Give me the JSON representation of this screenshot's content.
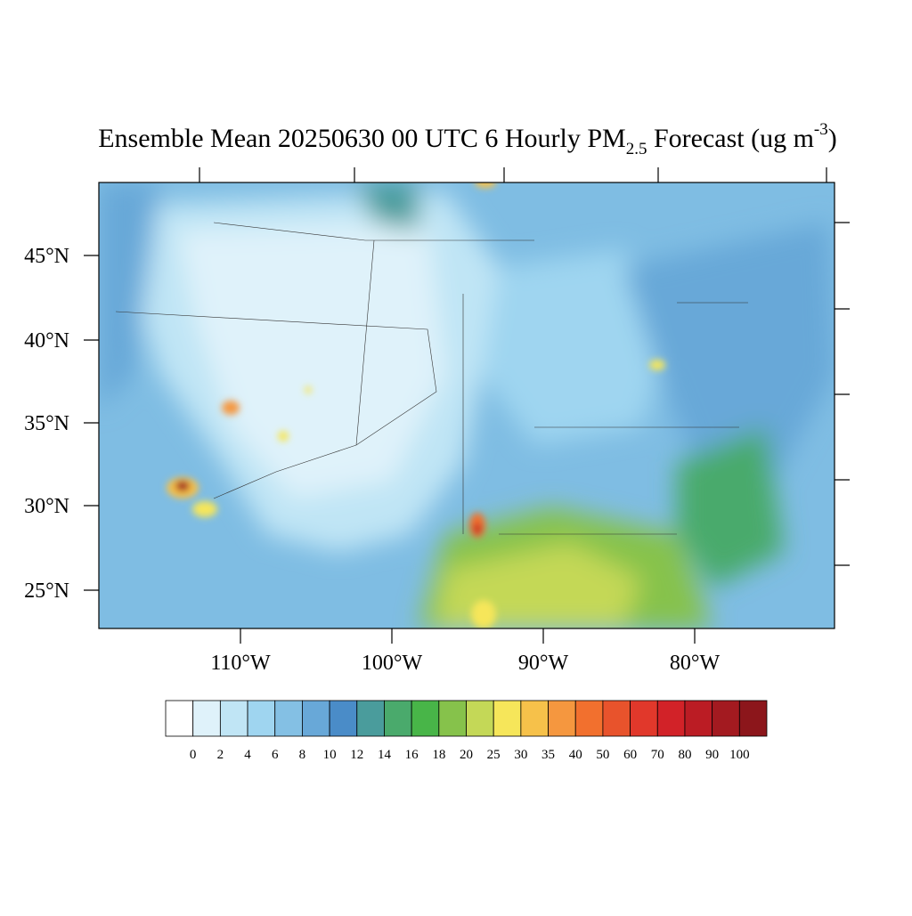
{
  "title": {
    "main": "Ensemble Mean 20250630 00 UTC 6 Hourly PM",
    "subscript": "2.5",
    "middle": " Forecast (ug m",
    "superscript": "-3",
    "end": ")"
  },
  "map": {
    "longitude_labels": [
      "110°W",
      "100°W",
      "90°W",
      "80°W"
    ],
    "latitude_labels": [
      "45°N",
      "40°N",
      "35°N",
      "30°N",
      "25°N"
    ]
  },
  "colorbar": {
    "levels": [
      0,
      2,
      4,
      6,
      8,
      10,
      12,
      14,
      16,
      18,
      20,
      25,
      30,
      35,
      40,
      50,
      60,
      70,
      80,
      90,
      100
    ],
    "colors": [
      "#ffffff",
      "#dff2fa",
      "#c0e5f5",
      "#9fd5f0",
      "#84c0e4",
      "#68a8d8",
      "#4a8cc8",
      "#4a9c9c",
      "#4aaa6c",
      "#48b548",
      "#86c24b",
      "#c4d857",
      "#f6e65a",
      "#f6c14a",
      "#f5973f",
      "#f2702e",
      "#e8532c",
      "#e1382b",
      "#d22228",
      "#bb1c24",
      "#a31a20",
      "#8c161b"
    ]
  }
}
